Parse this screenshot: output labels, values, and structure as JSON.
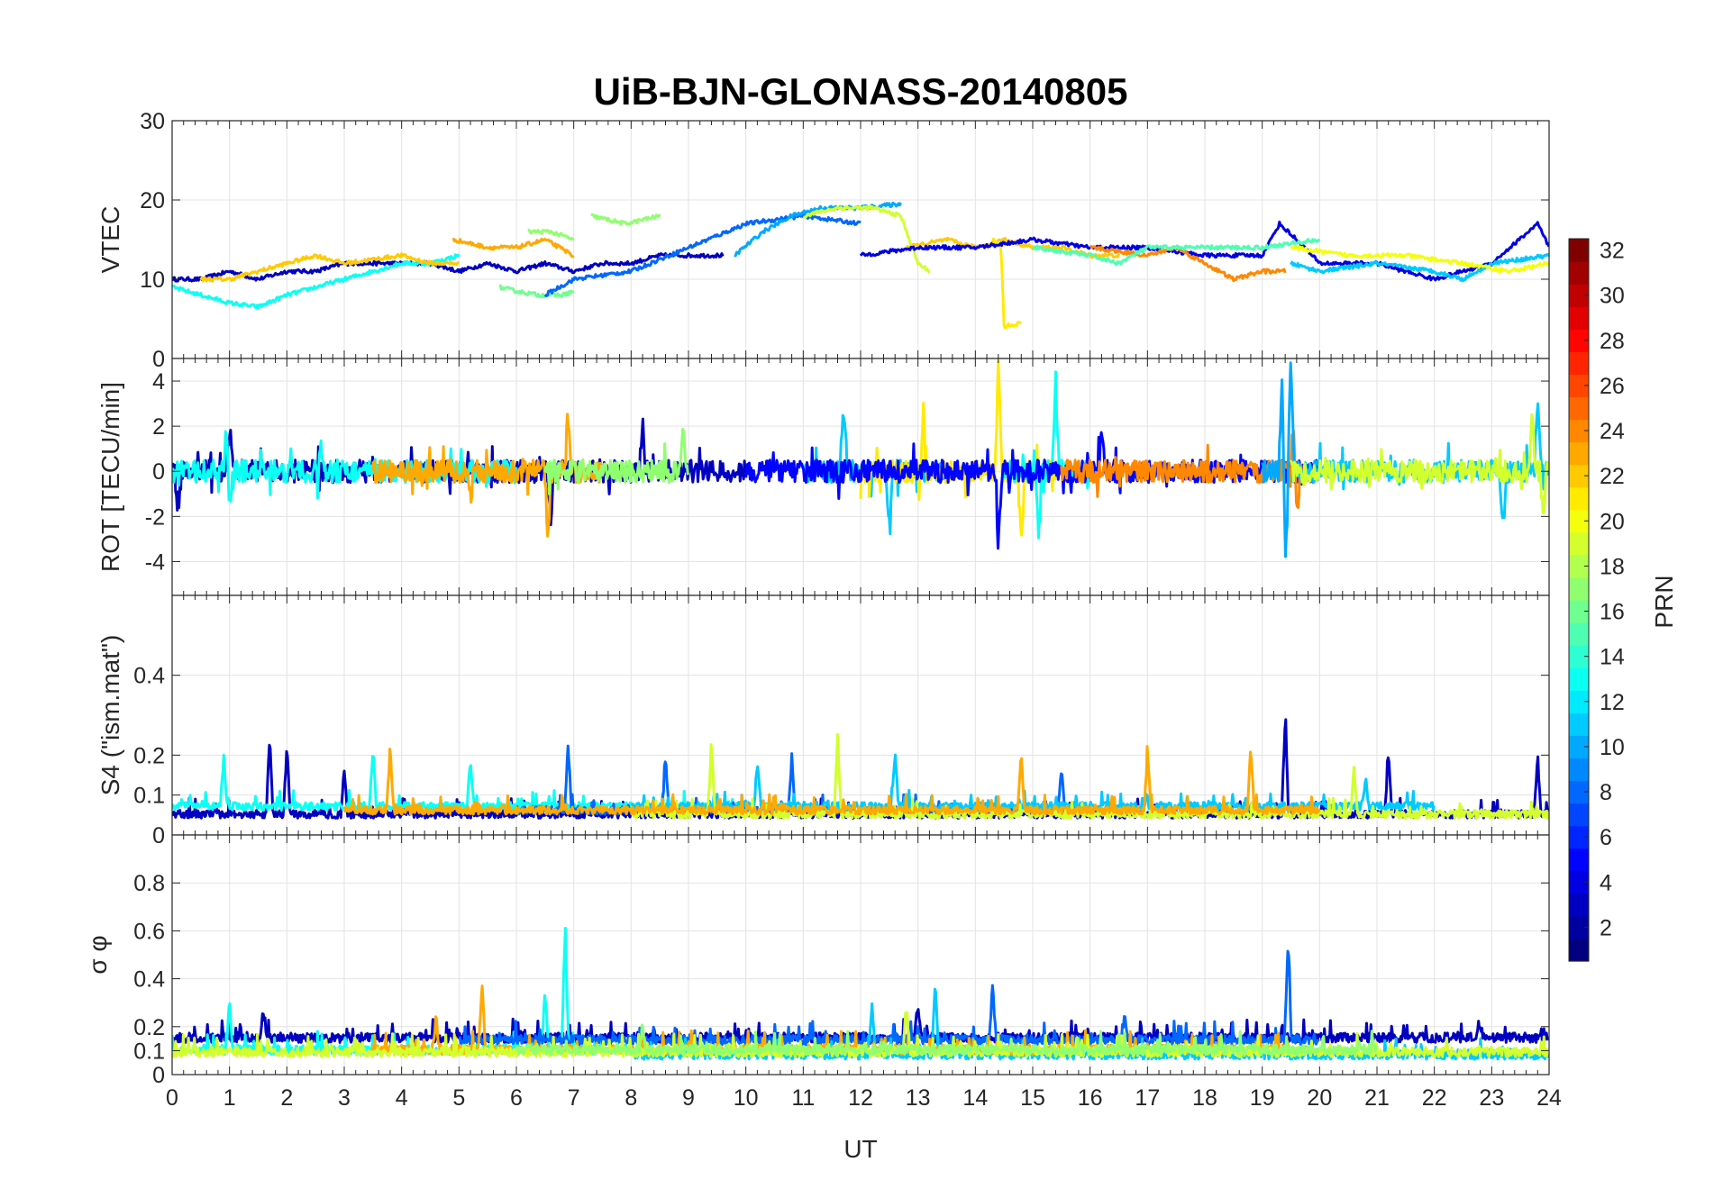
{
  "chart_data": {
    "type": "line",
    "title": "UiB-BJN-GLONASS-20140805",
    "xlabel": "UT",
    "xlim": [
      0,
      24
    ],
    "xticks": [
      0,
      1,
      2,
      3,
      4,
      5,
      6,
      7,
      8,
      9,
      10,
      11,
      12,
      13,
      14,
      15,
      16,
      17,
      18,
      19,
      20,
      21,
      22,
      23,
      24
    ],
    "grid": true,
    "colorbar": {
      "label": "PRN",
      "range": [
        1,
        32
      ],
      "ticks": [
        2,
        4,
        6,
        8,
        10,
        12,
        14,
        16,
        18,
        20,
        22,
        24,
        26,
        28,
        30,
        32
      ],
      "colormap": "jet",
      "placement": "right"
    },
    "panels": [
      {
        "ylabel": "VTEC",
        "ylim": [
          0,
          30
        ],
        "yticks": [
          0,
          10,
          20,
          30
        ],
        "noise": 0.25,
        "series": [
          {
            "prn": 3,
            "x": [
              0,
              0.5,
              1,
              1.5,
              2,
              2.5,
              3,
              3.5,
              4,
              4.5,
              5,
              5.5,
              6,
              6.5,
              7,
              7.5,
              8,
              8.5,
              9,
              9.6
            ],
            "y": [
              10,
              10,
              11,
              10,
              11,
              11,
              12,
              12,
              12,
              12,
              11,
              12,
              11,
              12,
              11,
              12,
              12,
              13,
              13,
              13
            ]
          },
          {
            "prn": 13,
            "x": [
              0,
              0.5,
              1,
              1.5,
              2,
              2.5,
              3,
              3.5,
              4,
              4.5,
              5
            ],
            "y": [
              9,
              8,
              7,
              6.5,
              8,
              9,
              10,
              11,
              12,
              12,
              13
            ]
          },
          {
            "prn": 22,
            "x": [
              0.5,
              1,
              1.5,
              2,
              2.5,
              3,
              3.5,
              4,
              4.5,
              5
            ],
            "y": [
              10,
              10,
              11,
              12,
              13,
              12,
              12.5,
              13,
              12,
              12
            ]
          },
          {
            "prn": 23,
            "x": [
              4.9,
              5.5,
              6,
              6.5,
              7
            ],
            "y": [
              15,
              14,
              14,
              15,
              13
            ]
          },
          {
            "prn": 16,
            "x": [
              5.7,
              6,
              6.4,
              6.8,
              7
            ],
            "y": [
              9,
              8.5,
              8,
              8,
              8.5
            ]
          },
          {
            "prn": 17,
            "x": [
              6.2,
              6.6,
              7
            ],
            "y": [
              16,
              16,
              15
            ]
          },
          {
            "prn": 17,
            "x": [
              7.3,
              7.9,
              8.5
            ],
            "y": [
              18,
              17,
              18
            ]
          },
          {
            "prn": 8,
            "x": [
              6.5,
              7,
              8,
              9,
              10,
              11,
              12
            ],
            "y": [
              8,
              10,
              11,
              14,
              17,
              18,
              17
            ]
          },
          {
            "prn": 10,
            "x": [
              9.8,
              10.3,
              10.8,
              11.3,
              12,
              12.7
            ],
            "y": [
              13,
              16,
              18,
              19,
              19,
              19.5
            ]
          },
          {
            "prn": 19,
            "x": [
              11,
              11.6,
              12.2,
              12.7,
              13,
              13.2
            ],
            "y": [
              18,
              19,
              19,
              18,
              12,
              11
            ]
          },
          {
            "prn": 22,
            "x": [
              12.8,
              13.5,
              14,
              14.5,
              15,
              15.5,
              16,
              16.5
            ],
            "y": [
              14,
              15,
              14,
              15,
              14,
              14,
              13,
              13
            ]
          },
          {
            "prn": 21,
            "x": [
              14.3,
              14.45,
              14.5,
              14.8
            ],
            "y": [
              15,
              14,
              4,
              4.5
            ]
          },
          {
            "prn": 4,
            "x": [
              12,
              13,
              14,
              15,
              16,
              17,
              18,
              19,
              19.3,
              19.6,
              20,
              21,
              22,
              23,
              23.8,
              24
            ],
            "y": [
              13,
              14,
              14,
              15,
              14,
              14,
              13,
              13,
              17,
              15,
              12,
              12,
              10,
              12,
              17,
              14
            ]
          },
          {
            "prn": 24,
            "x": [
              16,
              16.5,
              17,
              17.5,
              18,
              18.5,
              19,
              19.4
            ],
            "y": [
              14,
              13.5,
              13,
              14,
              12,
              10,
              11,
              11
            ]
          },
          {
            "prn": 11,
            "x": [
              19.5,
              20,
              21,
              22,
              22.5,
              23,
              24
            ],
            "y": [
              12,
              11,
              12,
              11,
              10,
              12,
              13
            ]
          },
          {
            "prn": 15,
            "x": [
              15,
              16,
              16.5,
              17,
              18,
              19,
              20
            ],
            "y": [
              14,
              13,
              12,
              14,
              14,
              14,
              15
            ]
          },
          {
            "prn": 20,
            "x": [
              19.5,
              20.5,
              21.5,
              22.5,
              23.3,
              24
            ],
            "y": [
              14,
              13,
              13,
              12,
              11,
              12
            ]
          }
        ]
      },
      {
        "ylabel": "ROT [TECU/min]",
        "ylim": [
          -5.5,
          5
        ],
        "yticks": [
          -4,
          -2,
          0,
          2,
          4
        ],
        "noise": 0.5,
        "series": [
          {
            "prn": 3,
            "x": [
              0,
              10
            ],
            "y": [
              0,
              0
            ],
            "spikes": [
              [
                0.1,
                -2
              ],
              [
                1,
                2
              ],
              [
                6.6,
                -2.5
              ],
              [
                8.2,
                2
              ]
            ]
          },
          {
            "prn": 13,
            "x": [
              0,
              6
            ],
            "y": [
              0,
              0
            ],
            "spikes": [
              [
                1,
                -2
              ],
              [
                0.95,
                2
              ],
              [
                2.6,
                1
              ]
            ]
          },
          {
            "prn": 23,
            "x": [
              3.5,
              7.5
            ],
            "y": [
              0,
              0
            ],
            "spikes": [
              [
                6.55,
                -2.8
              ],
              [
                6.9,
                2.7
              ],
              [
                5.2,
                -1.2
              ]
            ]
          },
          {
            "prn": 17,
            "x": [
              6.5,
              9
            ],
            "y": [
              0,
              0
            ],
            "spikes": [
              [
                8.9,
                1.8
              ]
            ]
          },
          {
            "prn": 11,
            "x": [
              11,
              13.5
            ],
            "y": [
              0,
              0
            ],
            "spikes": [
              [
                11.7,
                3.1
              ],
              [
                12.5,
                -2.5
              ]
            ]
          },
          {
            "prn": 21,
            "x": [
              12,
              15.5
            ],
            "y": [
              0,
              0
            ],
            "spikes": [
              [
                14.4,
                4.6
              ],
              [
                14.8,
                -3.3
              ],
              [
                13.1,
                2.8
              ]
            ]
          },
          {
            "prn": 13,
            "x": [
              14.5,
              16
            ],
            "y": [
              0,
              0
            ],
            "spikes": [
              [
                15.4,
                4.2
              ],
              [
                15.1,
                -2.5
              ]
            ]
          },
          {
            "prn": 5,
            "x": [
              10,
              20
            ],
            "y": [
              0,
              0
            ],
            "spikes": [
              [
                14.4,
                -3.2
              ],
              [
                16.2,
                1.7
              ]
            ]
          },
          {
            "prn": 24,
            "x": [
              15.5,
              19.8
            ],
            "y": [
              0,
              0
            ],
            "spikes": [
              [
                19.55,
                2.5
              ],
              [
                19.6,
                -2
              ]
            ]
          },
          {
            "prn": 10,
            "x": [
              19,
              20
            ],
            "y": [
              0,
              0
            ],
            "spikes": [
              [
                19.35,
                5
              ],
              [
                19.4,
                -4.5
              ],
              [
                19.5,
                5
              ]
            ]
          },
          {
            "prn": 11,
            "x": [
              19.5,
              24
            ],
            "y": [
              0,
              0
            ],
            "spikes": [
              [
                23.2,
                -2.5
              ],
              [
                23.8,
                3.2
              ]
            ]
          },
          {
            "prn": 19,
            "x": [
              19.5,
              24
            ],
            "y": [
              0,
              0
            ],
            "spikes": [
              [
                23.7,
                2.5
              ],
              [
                23.9,
                -2
              ]
            ]
          }
        ]
      },
      {
        "ylabel": "S4 (\"ism.mat\")",
        "ylim": [
          0,
          0.6
        ],
        "yticks": [
          0,
          0.1,
          0.2,
          0.4
        ],
        "noise": 0.02,
        "series": [
          {
            "prn": 3,
            "x": [
              0,
              24
            ],
            "y": [
              0.05,
              0.05
            ],
            "spikes": [
              [
                1.7,
                0.24
              ],
              [
                2,
                0.22
              ],
              [
                3,
                0.16
              ],
              [
                19.4,
                0.29
              ],
              [
                21.2,
                0.21
              ],
              [
                23.8,
                0.2
              ]
            ]
          },
          {
            "prn": 13,
            "x": [
              0,
              10
            ],
            "y": [
              0.07,
              0.07
            ],
            "spikes": [
              [
                0.9,
                0.19
              ],
              [
                3.5,
                0.21
              ],
              [
                5.2,
                0.19
              ]
            ]
          },
          {
            "prn": 8,
            "x": [
              6,
              16
            ],
            "y": [
              0.06,
              0.06
            ],
            "spikes": [
              [
                6.9,
                0.22
              ],
              [
                8.6,
                0.19
              ],
              [
                10.8,
                0.17
              ],
              [
                15.5,
                0.17
              ]
            ]
          },
          {
            "prn": 11,
            "x": [
              8,
              22
            ],
            "y": [
              0.07,
              0.07
            ],
            "spikes": [
              [
                12.6,
                0.21
              ],
              [
                10.2,
                0.18
              ],
              [
                20.8,
                0.14
              ]
            ]
          },
          {
            "prn": 19,
            "x": [
              8,
              24
            ],
            "y": [
              0.05,
              0.05
            ],
            "spikes": [
              [
                9.4,
                0.23
              ],
              [
                11.6,
                0.25
              ],
              [
                20.6,
                0.17
              ]
            ]
          },
          {
            "prn": 23,
            "x": [
              3,
              20
            ],
            "y": [
              0.06,
              0.06
            ],
            "spikes": [
              [
                3.8,
                0.22
              ],
              [
                14.8,
                0.2
              ],
              [
                18.8,
                0.22
              ],
              [
                17,
                0.2
              ]
            ]
          }
        ]
      },
      {
        "ylabel": "σ φ",
        "ylim": [
          0,
          1
        ],
        "yticks": [
          0,
          0.1,
          0.2,
          0.4,
          0.6,
          0.8
        ],
        "noise": 0.04,
        "series": [
          {
            "prn": 3,
            "x": [
              0,
              24
            ],
            "y": [
              0.15,
              0.15
            ],
            "spikes": [
              [
                1.6,
                0.25
              ],
              [
                13,
                0.3
              ],
              [
                22.8,
                0.2
              ]
            ]
          },
          {
            "prn": 13,
            "x": [
              0,
              8
            ],
            "y": [
              0.1,
              0.1
            ],
            "spikes": [
              [
                1,
                0.29
              ],
              [
                6.85,
                0.62
              ],
              [
                6.5,
                0.35
              ]
            ]
          },
          {
            "prn": 8,
            "x": [
              5,
              20
            ],
            "y": [
              0.14,
              0.14
            ],
            "spikes": [
              [
                14.3,
                0.37
              ],
              [
                19.45,
                0.56
              ],
              [
                16.6,
                0.25
              ]
            ]
          },
          {
            "prn": 11,
            "x": [
              8,
              24
            ],
            "y": [
              0.08,
              0.08
            ],
            "spikes": [
              [
                13.3,
                0.38
              ],
              [
                12.2,
                0.28
              ]
            ]
          },
          {
            "prn": 23,
            "x": [
              3.5,
              19.5
            ],
            "y": [
              0.1,
              0.1
            ],
            "spikes": [
              [
                5.4,
                0.38
              ],
              [
                4.6,
                0.23
              ]
            ]
          },
          {
            "prn": 19,
            "x": [
              0,
              24
            ],
            "y": [
              0.09,
              0.09
            ],
            "spikes": [
              [
                12.8,
                0.27
              ]
            ]
          },
          {
            "prn": 17,
            "x": [
              6,
              21
            ],
            "y": [
              0.1,
              0.1
            ],
            "spikes": [
              [
                8.2,
                0.2
              ]
            ]
          }
        ]
      }
    ]
  }
}
